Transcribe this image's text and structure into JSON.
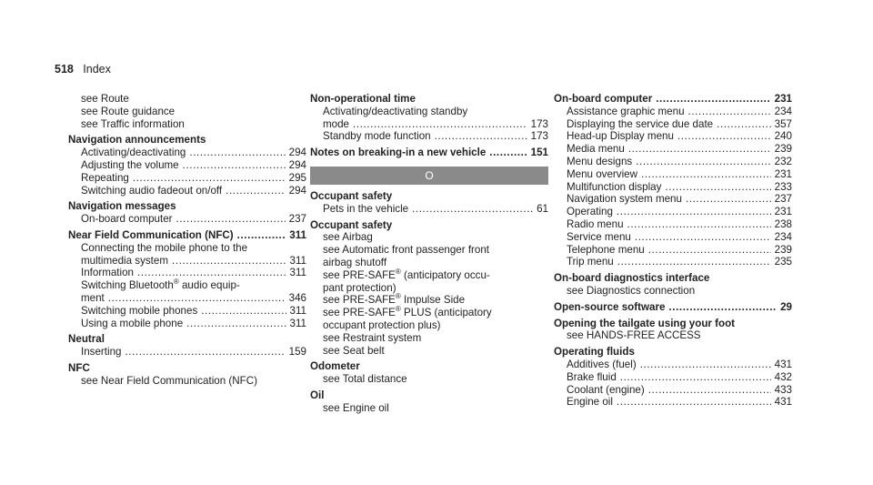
{
  "header": {
    "page_number": "518",
    "section": "Index"
  },
  "col1": [
    {
      "text": "see Route",
      "indent": true
    },
    {
      "text": "see Route guidance",
      "indent": true
    },
    {
      "text": "see Traffic information",
      "indent": true
    },
    {
      "text": "Navigation announcements",
      "head": true
    },
    {
      "text": "Activating/deactivating",
      "page": "294",
      "indent": true
    },
    {
      "text": "Adjusting the volume",
      "page": "294",
      "indent": true
    },
    {
      "text": "Repeating",
      "page": "295",
      "indent": true
    },
    {
      "text": "Switching audio fadeout on/off",
      "page": "294",
      "indent": true
    },
    {
      "text": "Navigation messages",
      "head": true
    },
    {
      "text": "On-board computer",
      "page": "237",
      "indent": true
    },
    {
      "text": "Near Field Communication (NFC)",
      "page": "311",
      "head": true
    },
    {
      "text": "Connecting the mobile phone to the",
      "indent": true
    },
    {
      "text": "multimedia system",
      "page": "311",
      "indent": true
    },
    {
      "text": "Information",
      "page": "311",
      "indent": true
    },
    {
      "text": "Switching Bluetooth® audio equip-",
      "indent": true
    },
    {
      "text": "ment",
      "page": "346",
      "indent": true
    },
    {
      "text": "Switching mobile phones",
      "page": "311",
      "indent": true
    },
    {
      "text": "Using a mobile phone",
      "page": "311",
      "indent": true
    },
    {
      "text": "Neutral",
      "head": true
    },
    {
      "text": "Inserting",
      "page": "159",
      "indent": true
    },
    {
      "text": "NFC",
      "head": true
    },
    {
      "text": "see Near Field Communication (NFC)",
      "indent": true
    }
  ],
  "col2": [
    {
      "text": "Non-operational time",
      "head": true
    },
    {
      "text": "Activating/deactivating standby",
      "indent": true
    },
    {
      "text": "mode",
      "page": "173",
      "indent": true
    },
    {
      "text": "Standby mode function",
      "page": "173",
      "indent": true
    },
    {
      "text": "Notes on breaking-in a new vehicle",
      "page": "151",
      "head": true
    },
    {
      "letter": "O"
    },
    {
      "text": "Occupant safety",
      "head": true
    },
    {
      "text": "Pets in the vehicle",
      "page": "61",
      "indent": true
    },
    {
      "text": "Occupant safety",
      "head": true
    },
    {
      "text": "see Airbag",
      "indent": true
    },
    {
      "text": "see Automatic front passenger front",
      "indent": true
    },
    {
      "text": "airbag shutoff",
      "indent": true
    },
    {
      "text": "see PRE-SAFE® (anticipatory occu-",
      "indent": true
    },
    {
      "text": "pant protection)",
      "indent": true
    },
    {
      "text": "see PRE-SAFE® Impulse Side",
      "indent": true
    },
    {
      "text": "see PRE-SAFE® PLUS (anticipatory",
      "indent": true
    },
    {
      "text": "occupant protection plus)",
      "indent": true
    },
    {
      "text": "see Restraint system",
      "indent": true
    },
    {
      "text": "see Seat belt",
      "indent": true
    },
    {
      "text": "Odometer",
      "head": true
    },
    {
      "text": "see Total distance",
      "indent": true
    },
    {
      "text": "Oil",
      "head": true
    },
    {
      "text": "see Engine oil",
      "indent": true
    }
  ],
  "col3": [
    {
      "text": "On-board computer",
      "page": "231",
      "head": true
    },
    {
      "text": "Assistance graphic menu",
      "page": "234",
      "indent": true
    },
    {
      "text": "Displaying the service due date",
      "page": "357",
      "indent": true
    },
    {
      "text": "Head-up Display menu",
      "page": "240",
      "indent": true
    },
    {
      "text": "Media menu",
      "page": "239",
      "indent": true
    },
    {
      "text": "Menu designs",
      "page": "232",
      "indent": true
    },
    {
      "text": "Menu overview",
      "page": "231",
      "indent": true
    },
    {
      "text": "Multifunction display",
      "page": "233",
      "indent": true
    },
    {
      "text": "Navigation system menu",
      "page": "237",
      "indent": true
    },
    {
      "text": "Operating",
      "page": "231",
      "indent": true
    },
    {
      "text": "Radio menu",
      "page": "238",
      "indent": true
    },
    {
      "text": "Service menu",
      "page": "234",
      "indent": true
    },
    {
      "text": "Telephone menu",
      "page": "239",
      "indent": true
    },
    {
      "text": "Trip menu",
      "page": "235",
      "indent": true
    },
    {
      "text": "On-board diagnostics interface",
      "head": true
    },
    {
      "text": "see Diagnostics connection",
      "indent": true
    },
    {
      "text": "Open-source software",
      "page": "29",
      "head": true
    },
    {
      "text": "Opening the tailgate using your foot",
      "head": true
    },
    {
      "text": "see HANDS-FREE ACCESS",
      "indent": true
    },
    {
      "text": "Operating fluids",
      "head": true
    },
    {
      "text": "Additives (fuel)",
      "page": "431",
      "indent": true
    },
    {
      "text": "Brake fluid",
      "page": "432",
      "indent": true
    },
    {
      "text": "Coolant (engine)",
      "page": "433",
      "indent": true
    },
    {
      "text": "Engine oil",
      "page": "431",
      "indent": true
    }
  ]
}
